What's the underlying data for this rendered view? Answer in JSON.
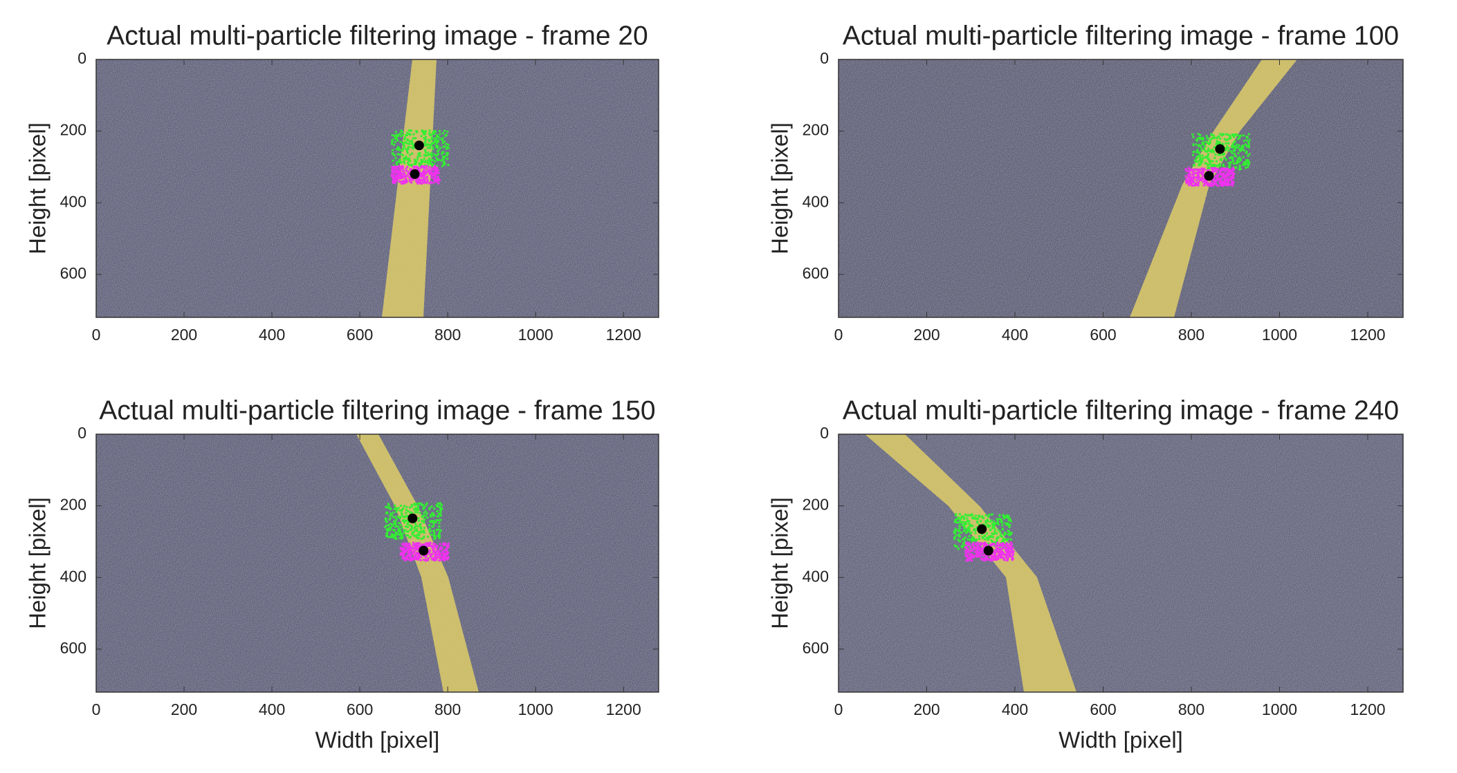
{
  "chart_data": [
    {
      "type": "image",
      "title": "Actual multi-particle filtering image - frame 20",
      "ylabel": "Height [pixel]",
      "xlim": [
        0,
        1280
      ],
      "ylim": [
        0,
        720
      ],
      "y_reversed": true,
      "xticks": [
        0,
        200,
        400,
        600,
        800,
        1000,
        1200
      ],
      "yticks": [
        0,
        200,
        400,
        600
      ],
      "x": [
        735,
        725
      ],
      "values": [
        240,
        320
      ],
      "point_color": "#000000",
      "particle_colors": [
        "#33ee33",
        "#ee33ee"
      ]
    },
    {
      "type": "image",
      "title": "Actual multi-particle filtering image - frame 100",
      "ylabel": "Height [pixel]",
      "xlim": [
        0,
        1280
      ],
      "ylim": [
        0,
        720
      ],
      "y_reversed": true,
      "xticks": [
        0,
        200,
        400,
        600,
        800,
        1000,
        1200
      ],
      "yticks": [
        0,
        200,
        400,
        600
      ],
      "x": [
        865,
        840
      ],
      "values": [
        250,
        325
      ],
      "point_color": "#000000",
      "particle_colors": [
        "#33ee33",
        "#ee33ee"
      ]
    },
    {
      "type": "image",
      "title": "Actual multi-particle filtering image - frame 150",
      "xlabel": "Width [pixel]",
      "ylabel": "Height [pixel]",
      "xlim": [
        0,
        1280
      ],
      "ylim": [
        0,
        720
      ],
      "y_reversed": true,
      "xticks": [
        0,
        200,
        400,
        600,
        800,
        1000,
        1200
      ],
      "yticks": [
        0,
        200,
        400,
        600
      ],
      "x": [
        720,
        745
      ],
      "values": [
        235,
        325
      ],
      "point_color": "#000000",
      "particle_colors": [
        "#33ee33",
        "#ee33ee"
      ]
    },
    {
      "type": "image",
      "title": "Actual multi-particle filtering image - frame 240",
      "xlabel": "Width [pixel]",
      "ylabel": "Height [pixel]",
      "xlim": [
        0,
        1280
      ],
      "ylim": [
        0,
        720
      ],
      "y_reversed": true,
      "xticks": [
        0,
        200,
        400,
        600,
        800,
        1000,
        1200
      ],
      "yticks": [
        0,
        200,
        400,
        600
      ],
      "x": [
        325,
        340
      ],
      "values": [
        265,
        325
      ],
      "point_color": "#000000",
      "particle_colors": [
        "#33ee33",
        "#ee33ee"
      ]
    }
  ]
}
